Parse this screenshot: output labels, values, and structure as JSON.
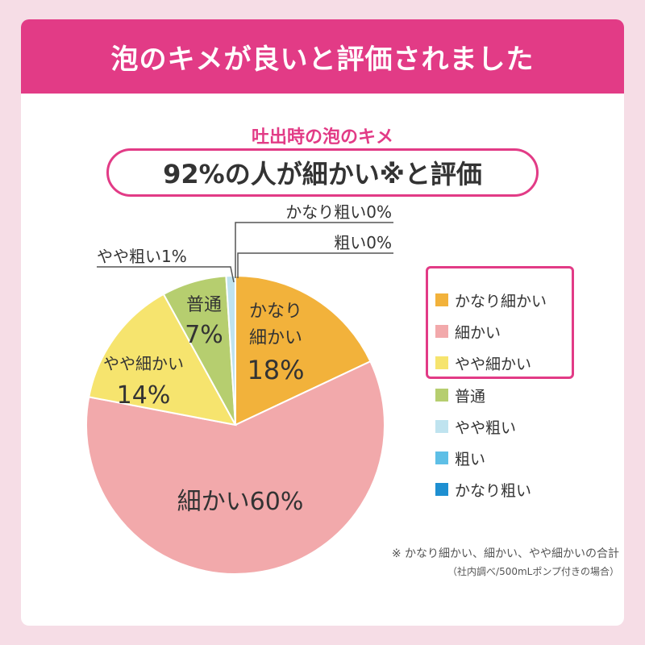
{
  "banner": {
    "title": "泡のキメが良いと評価されました"
  },
  "subtitle": "吐出時の泡のキメ",
  "headline": "92%の人が細かい※と評価",
  "chart_data": {
    "type": "pie",
    "series": [
      {
        "name": "かなり細かい",
        "value": 18,
        "color": "#f2b23b"
      },
      {
        "name": "細かい",
        "value": 60,
        "color": "#f2a9ab"
      },
      {
        "name": "やや細かい",
        "value": 14,
        "color": "#f6e46e"
      },
      {
        "name": "普通",
        "value": 7,
        "color": "#b6ce6f"
      },
      {
        "name": "やや粗い",
        "value": 1,
        "color": "#bfe3ef"
      },
      {
        "name": "粗い",
        "value": 0,
        "color": "#5ebfe6"
      },
      {
        "name": "かなり粗い",
        "value": 0,
        "color": "#1e8fd1"
      }
    ]
  },
  "labels": {
    "very_fine": [
      "かなり",
      "細かい",
      "18%"
    ],
    "fine": "細かい60%",
    "slightly_fine": [
      "やや細かい",
      "14%"
    ],
    "normal": [
      "普通",
      "7%"
    ],
    "callout_slightly_coarse": "やや粗い1%",
    "callout_very_coarse": "かなり粗い0%",
    "callout_coarse": "粗い0%"
  },
  "legend": [
    {
      "label": "かなり細かい",
      "color": "#f2b23b"
    },
    {
      "label": "細かい",
      "color": "#f2a9ab"
    },
    {
      "label": "やや細かい",
      "color": "#f6e46e"
    },
    {
      "label": "普通",
      "color": "#b6ce6f"
    },
    {
      "label": "やや粗い",
      "color": "#bfe3ef"
    },
    {
      "label": "粗い",
      "color": "#5ebfe6"
    },
    {
      "label": "かなり粗い",
      "color": "#1e8fd1"
    }
  ],
  "footnote": {
    "line1": "※ かなり細かい、細かい、やや細かいの合計",
    "line2": "（社内調べ/500mLポンプ付きの場合）"
  }
}
